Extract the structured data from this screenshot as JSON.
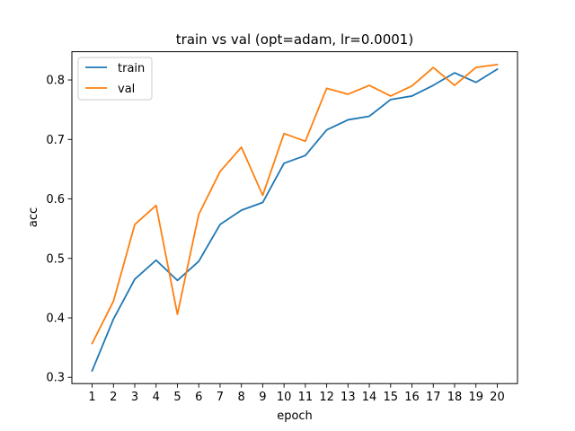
{
  "chart_data": {
    "type": "line",
    "title": "train vs val (opt=adam, lr=0.0001)",
    "xlabel": "epoch",
    "ylabel": "acc",
    "x": [
      1,
      2,
      3,
      4,
      5,
      6,
      7,
      8,
      9,
      10,
      11,
      12,
      13,
      14,
      15,
      16,
      17,
      18,
      19,
      20
    ],
    "xlim": [
      0.05,
      20.95
    ],
    "ylim": [
      0.2895,
      0.8475
    ],
    "yticks": [
      0.3,
      0.4,
      0.5,
      0.6,
      0.7,
      0.8
    ],
    "ytick_labels": [
      "0.3",
      "0.4",
      "0.5",
      "0.6",
      "0.7",
      "0.8"
    ],
    "xtick_labels": [
      "1",
      "2",
      "3",
      "4",
      "5",
      "6",
      "7",
      "8",
      "9",
      "10",
      "11",
      "12",
      "13",
      "14",
      "15",
      "16",
      "17",
      "18",
      "19",
      "20"
    ],
    "grid": false,
    "legend_position": "top-left",
    "series": [
      {
        "name": "train",
        "color": "#1f77b4",
        "values": [
          0.311,
          0.398,
          0.465,
          0.497,
          0.463,
          0.495,
          0.557,
          0.581,
          0.594,
          0.66,
          0.673,
          0.716,
          0.733,
          0.739,
          0.767,
          0.773,
          0.791,
          0.812,
          0.796,
          0.818
        ]
      },
      {
        "name": "val",
        "color": "#ff7f0e",
        "values": [
          0.357,
          0.428,
          0.557,
          0.589,
          0.406,
          0.574,
          0.646,
          0.687,
          0.606,
          0.71,
          0.697,
          0.786,
          0.776,
          0.791,
          0.773,
          0.79,
          0.821,
          0.791,
          0.821,
          0.826
        ]
      }
    ]
  }
}
